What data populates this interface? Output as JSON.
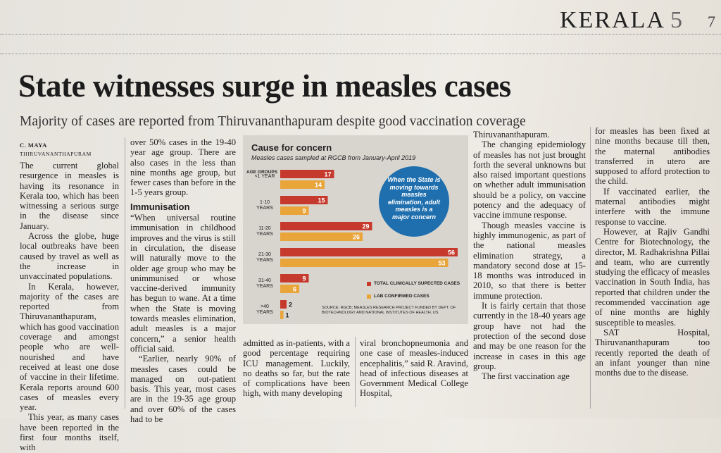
{
  "header": {
    "section": "KERALA",
    "page": "5",
    "edge": "7"
  },
  "headline": "State witnesses surge in measles cases",
  "subheadline": "Majority of cases are reported from Thiruvananthapuram despite good vaccination coverage",
  "byline": "C. MAYA",
  "dateline": "THIRUVANANTHAPURAM",
  "columns": [
    [
      {
        "text": "The current global resurgence in measles is having its resonance in Kerala too, which has been witnessing a serious surge in the disease since January."
      },
      {
        "text": "Across the globe, huge local outbreaks have been caused by travel as well as the increase in unvaccinated populations."
      },
      {
        "text": "In Kerala, however, majority of the cases are reported from Thiruvananthapuram, which has good vaccination coverage and amongst people who are well-nourished and have received at least one dose of vaccine in their lifetime. Kerala reports around 600 cases of measles every year."
      },
      {
        "text": "This year, as many cases have been reported in the first four months itself, with"
      }
    ],
    [
      {
        "text": "over 50% cases in the 19-40 year age group. There are also cases in the less than nine months age group, but fewer cases than before in the 1-5 years group."
      },
      {
        "heading": "Immunisation"
      },
      {
        "text": "“When universal routine immunisation in childhood improves and the virus is still in circulation, the disease will naturally move to the older age group who may be unimmunised or whose vaccine-derived immunity has begun to wane. At a time when the State is moving towards measles elimination, adult measles is a major concern,” a senior health official said."
      },
      {
        "text": "“Earlier, nearly 90% of measles cases could be managed on out-patient basis. This year, most cases are in the 19-35 age group and over 60% of the cases had to be"
      }
    ],
    [
      {
        "text": "admitted as in-patients, with a good percentage requiring ICU management. Luckily, no deaths so far, but the rate of complications have been high, with many developing"
      }
    ],
    [
      {
        "text": "viral bronchopneumonia and one case of measles-induced encephalitis,” said R. Aravind, head of infectious diseases at Government Medical College Hospital,"
      }
    ],
    [
      {
        "text": "Thiruvananthapuram."
      },
      {
        "text": "The changing epidemiology of measles has not just brought forth the several unknowns but also raised important questions on whether adult immunisation should be a policy, on vaccine potency and the adequacy of vaccine immune response."
      },
      {
        "text": "Though measles vaccine is highly immunogenic, as part of the national measles elimination strategy, a mandatory second dose at 15-18 months was introduced in 2010, so that there is better immune protection."
      },
      {
        "text": "It is fairly certain that those currently in the 18-40 years age group have not had the protection of the second dose and may be one reason for the increase in cases in this age group."
      },
      {
        "text": "The first vaccination age"
      }
    ],
    [
      {
        "text": "for measles has been fixed at nine months because till then, the maternal antibodies transferred in utero are supposed to afford protection to the child."
      },
      {
        "text": "If vaccinated earlier, the maternal antibodies might interfere with the immune response to vaccine."
      },
      {
        "text": "However, at Rajiv Gandhi Centre for Biotechnology, the director, M. Radhakrishna Pillai and team, who are currently studying the efficacy of measles vaccination in South India, has reported that children under the recommended vaccination age of nine months are highly susceptible to measles."
      },
      {
        "text": "SAT Hospital, Thiruvananthapuram too recently reported the death of an infant younger than nine months due to the disease."
      }
    ]
  ],
  "chart_data": {
    "type": "bar",
    "title": "Cause for concern",
    "subtitle": "Measles cases sampled at RGCB from January-April 2019",
    "axis_label": "AGE GROUPS",
    "categories": [
      "<1 YEAR",
      "1-10 YEARS",
      "11-20 YEARS",
      "21-30 YEARS",
      "31-40 YEARS",
      ">40 YEARS"
    ],
    "series": [
      {
        "name": "TOTAL CLINICALLY SUPECTED CASES",
        "color": "#c63a2e",
        "values": [
          17,
          15,
          29,
          56,
          9,
          2
        ]
      },
      {
        "name": "LAB CONFIRMED CASES",
        "color": "#e9a43a",
        "values": [
          14,
          9,
          26,
          53,
          6,
          1
        ]
      }
    ],
    "callout": "When the State is moving towards measles elimination, adult measles is a major concern",
    "source": "SOURCE: RGCB; MEASLES RESEARCH PROJECT FUNDED BY DEPT. OF BIOTECHNOLOGY AND NATIONAL INSTITUTES OF HEALTH, US"
  }
}
